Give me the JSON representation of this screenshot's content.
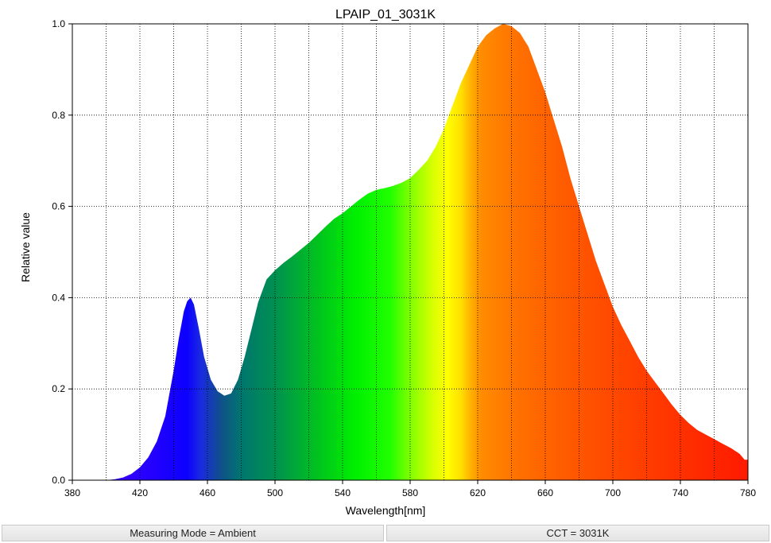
{
  "colors": {
    "background": "#ffffff",
    "frame": "#000000",
    "grid": "#000000"
  },
  "chart_data": {
    "type": "area",
    "title": "LPAIP_01_3031K",
    "xlabel": "Wavelength[nm]",
    "ylabel": "Relative value",
    "xlim": [
      380,
      780
    ],
    "ylim": [
      0,
      1.0
    ],
    "x_ticks": [
      "380",
      "420",
      "460",
      "500",
      "540",
      "580",
      "620",
      "660",
      "700",
      "740",
      "780"
    ],
    "y_ticks": [
      "0.0",
      "0.2",
      "0.4",
      "0.6",
      "0.8",
      "1.0"
    ],
    "grid": true,
    "fill": "visible-spectrum gradient",
    "series": [
      {
        "x": [
          400,
          405,
          410,
          415,
          420,
          425,
          430,
          435,
          440,
          443,
          446,
          448,
          450,
          452,
          455,
          458,
          462,
          466,
          470,
          474,
          478,
          482,
          486,
          490,
          495,
          500,
          505,
          510,
          515,
          520,
          525,
          530,
          535,
          540,
          545,
          550,
          555,
          560,
          565,
          570,
          575,
          580,
          585,
          590,
          595,
          600,
          605,
          610,
          615,
          620,
          625,
          630,
          635,
          640,
          645,
          650,
          655,
          660,
          665,
          670,
          675,
          680,
          685,
          690,
          695,
          700,
          705,
          710,
          715,
          720,
          725,
          730,
          735,
          740,
          745,
          750,
          755,
          760,
          765,
          770,
          775,
          778,
          780
        ],
        "y": [
          0.0,
          0.002,
          0.006,
          0.014,
          0.028,
          0.05,
          0.085,
          0.14,
          0.24,
          0.31,
          0.37,
          0.392,
          0.4,
          0.385,
          0.33,
          0.27,
          0.22,
          0.195,
          0.185,
          0.19,
          0.22,
          0.27,
          0.33,
          0.39,
          0.44,
          0.46,
          0.476,
          0.49,
          0.505,
          0.52,
          0.538,
          0.556,
          0.573,
          0.585,
          0.6,
          0.615,
          0.628,
          0.636,
          0.64,
          0.645,
          0.652,
          0.662,
          0.68,
          0.7,
          0.73,
          0.77,
          0.82,
          0.87,
          0.91,
          0.95,
          0.975,
          0.99,
          1.0,
          0.995,
          0.98,
          0.95,
          0.9,
          0.85,
          0.79,
          0.73,
          0.66,
          0.6,
          0.54,
          0.48,
          0.43,
          0.38,
          0.34,
          0.305,
          0.27,
          0.24,
          0.215,
          0.19,
          0.165,
          0.143,
          0.125,
          0.11,
          0.1,
          0.09,
          0.08,
          0.07,
          0.058,
          0.045,
          0.045
        ]
      }
    ]
  },
  "status": {
    "measuring_mode": "Measuring Mode = Ambient",
    "cct": "CCT = 3031K"
  }
}
